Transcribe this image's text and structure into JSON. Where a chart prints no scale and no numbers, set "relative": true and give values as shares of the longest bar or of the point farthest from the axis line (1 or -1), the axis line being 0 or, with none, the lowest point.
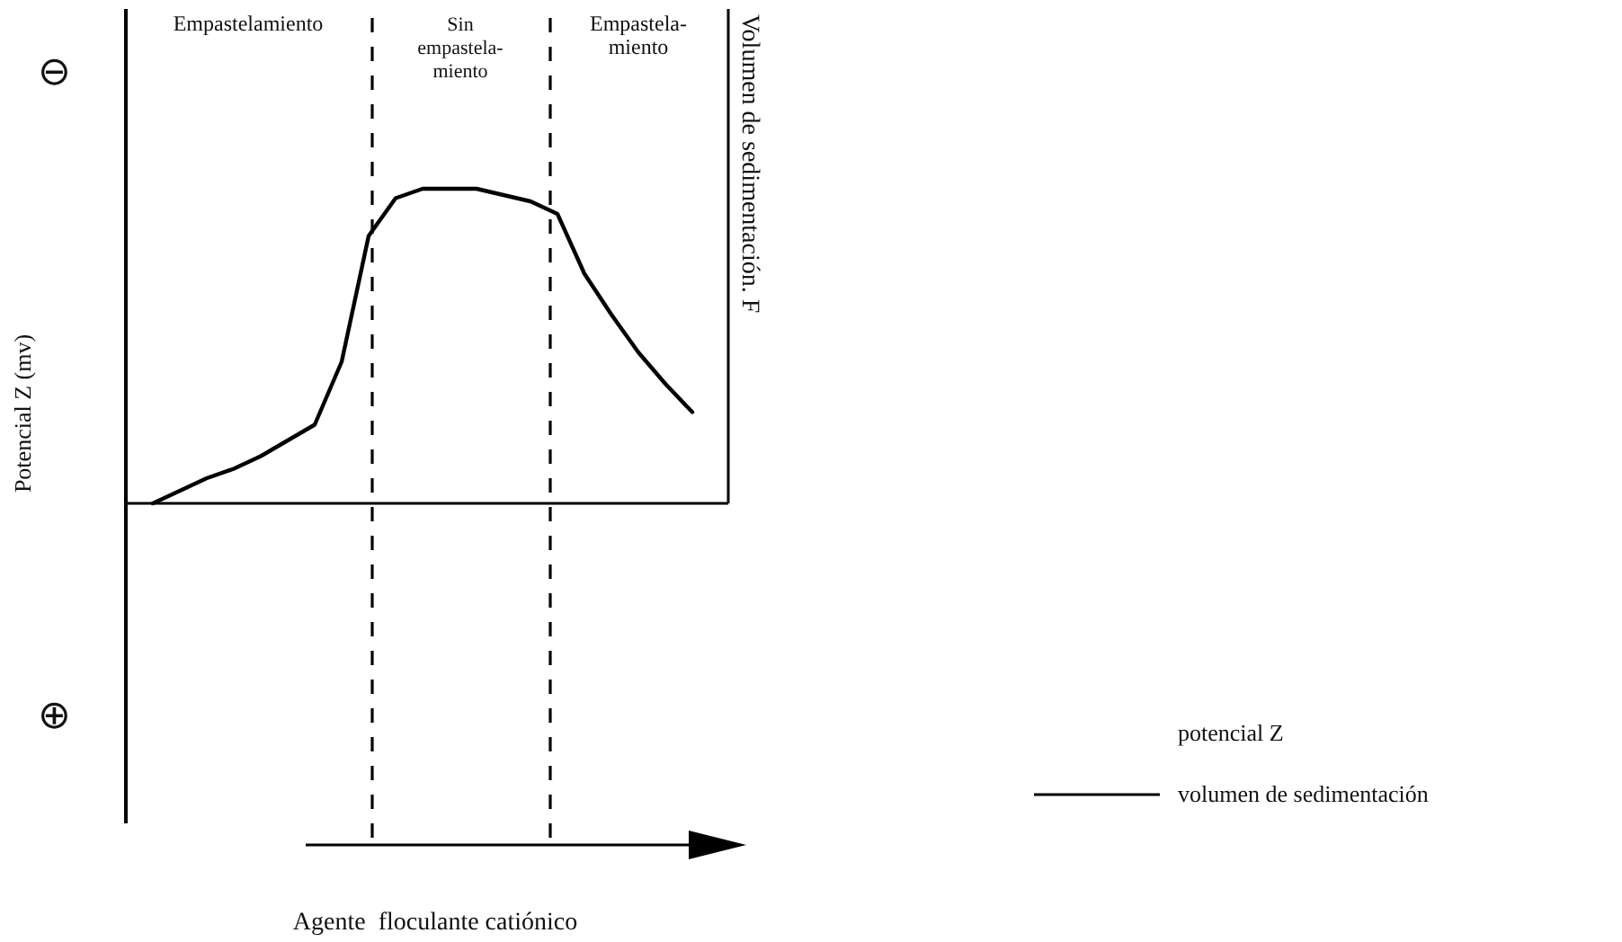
{
  "chart_data": {
    "type": "line",
    "relative": true,
    "tick_labels": false,
    "ylabel": "Potencial Z  (mv)",
    "y2label": "Volumen de sedimentación. F",
    "categories": [
      null,
      null,
      null,
      null,
      null,
      null,
      null,
      null,
      null,
      null,
      null,
      null,
      null,
      null,
      null,
      null,
      null,
      null,
      null,
      null,
      null
    ],
    "series": [
      {
        "name": "volumen de sedimentación",
        "color": "#000000",
        "values": [
          0,
          0.04,
          0.08,
          0.11,
          0.15,
          0.2,
          0.25,
          0.45,
          0.85,
          0.97,
          1,
          1,
          1,
          0.98,
          0.96,
          0.92,
          0.73,
          0.6,
          0.48,
          0.38,
          0.29
        ]
      }
    ],
    "annotations": [
      "Empastelamiento",
      "Sin\nempastela-\nmiento",
      "Empastela-\nmiento",
      "⊖",
      "⊕",
      "potencial Z",
      "Agente  floculante catiónico"
    ],
    "legend": "bottom right",
    "marker": "none",
    "line_style": "solid"
  }
}
